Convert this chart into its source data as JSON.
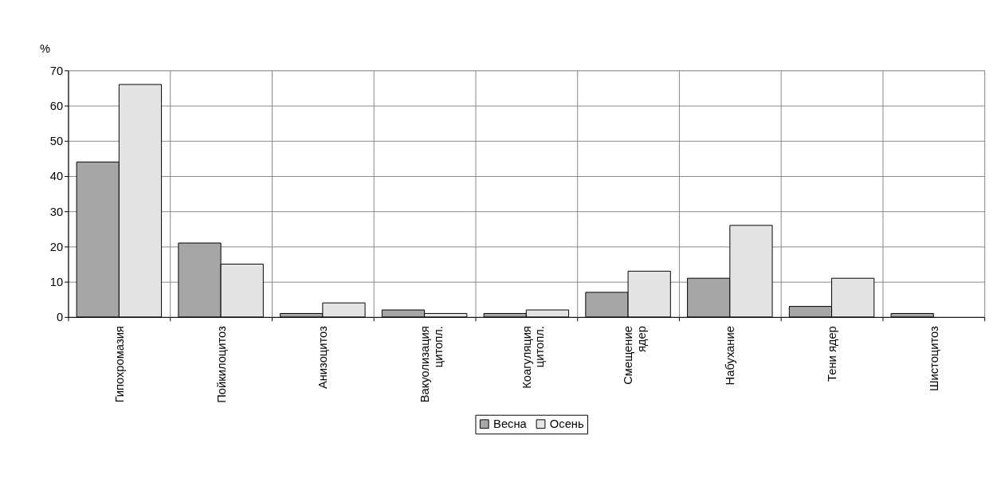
{
  "chart_data": {
    "type": "bar",
    "ylabel": "%",
    "categories": [
      "Гипохромазия",
      "Пойкилоцитоз",
      "Анизоцитоз",
      "Вакуолизация цитопл.",
      "Коагуляция цитопл.",
      "Смещение ядер",
      "Набухание",
      "Тени ядер",
      "Шистоцитоз"
    ],
    "series": [
      {
        "name": "Весна",
        "color": "#a6a6a6",
        "values": [
          44,
          21,
          1,
          2,
          1,
          7,
          11,
          3,
          1
        ]
      },
      {
        "name": "Осень",
        "color": "#e4e4e4",
        "values": [
          66,
          15,
          4,
          1,
          2,
          13,
          26,
          11,
          null
        ]
      }
    ],
    "ylim": [
      0,
      70
    ],
    "yticks": [
      0,
      10,
      20,
      30,
      40,
      50,
      60,
      70
    ],
    "grid": true,
    "legend": "bottom"
  }
}
